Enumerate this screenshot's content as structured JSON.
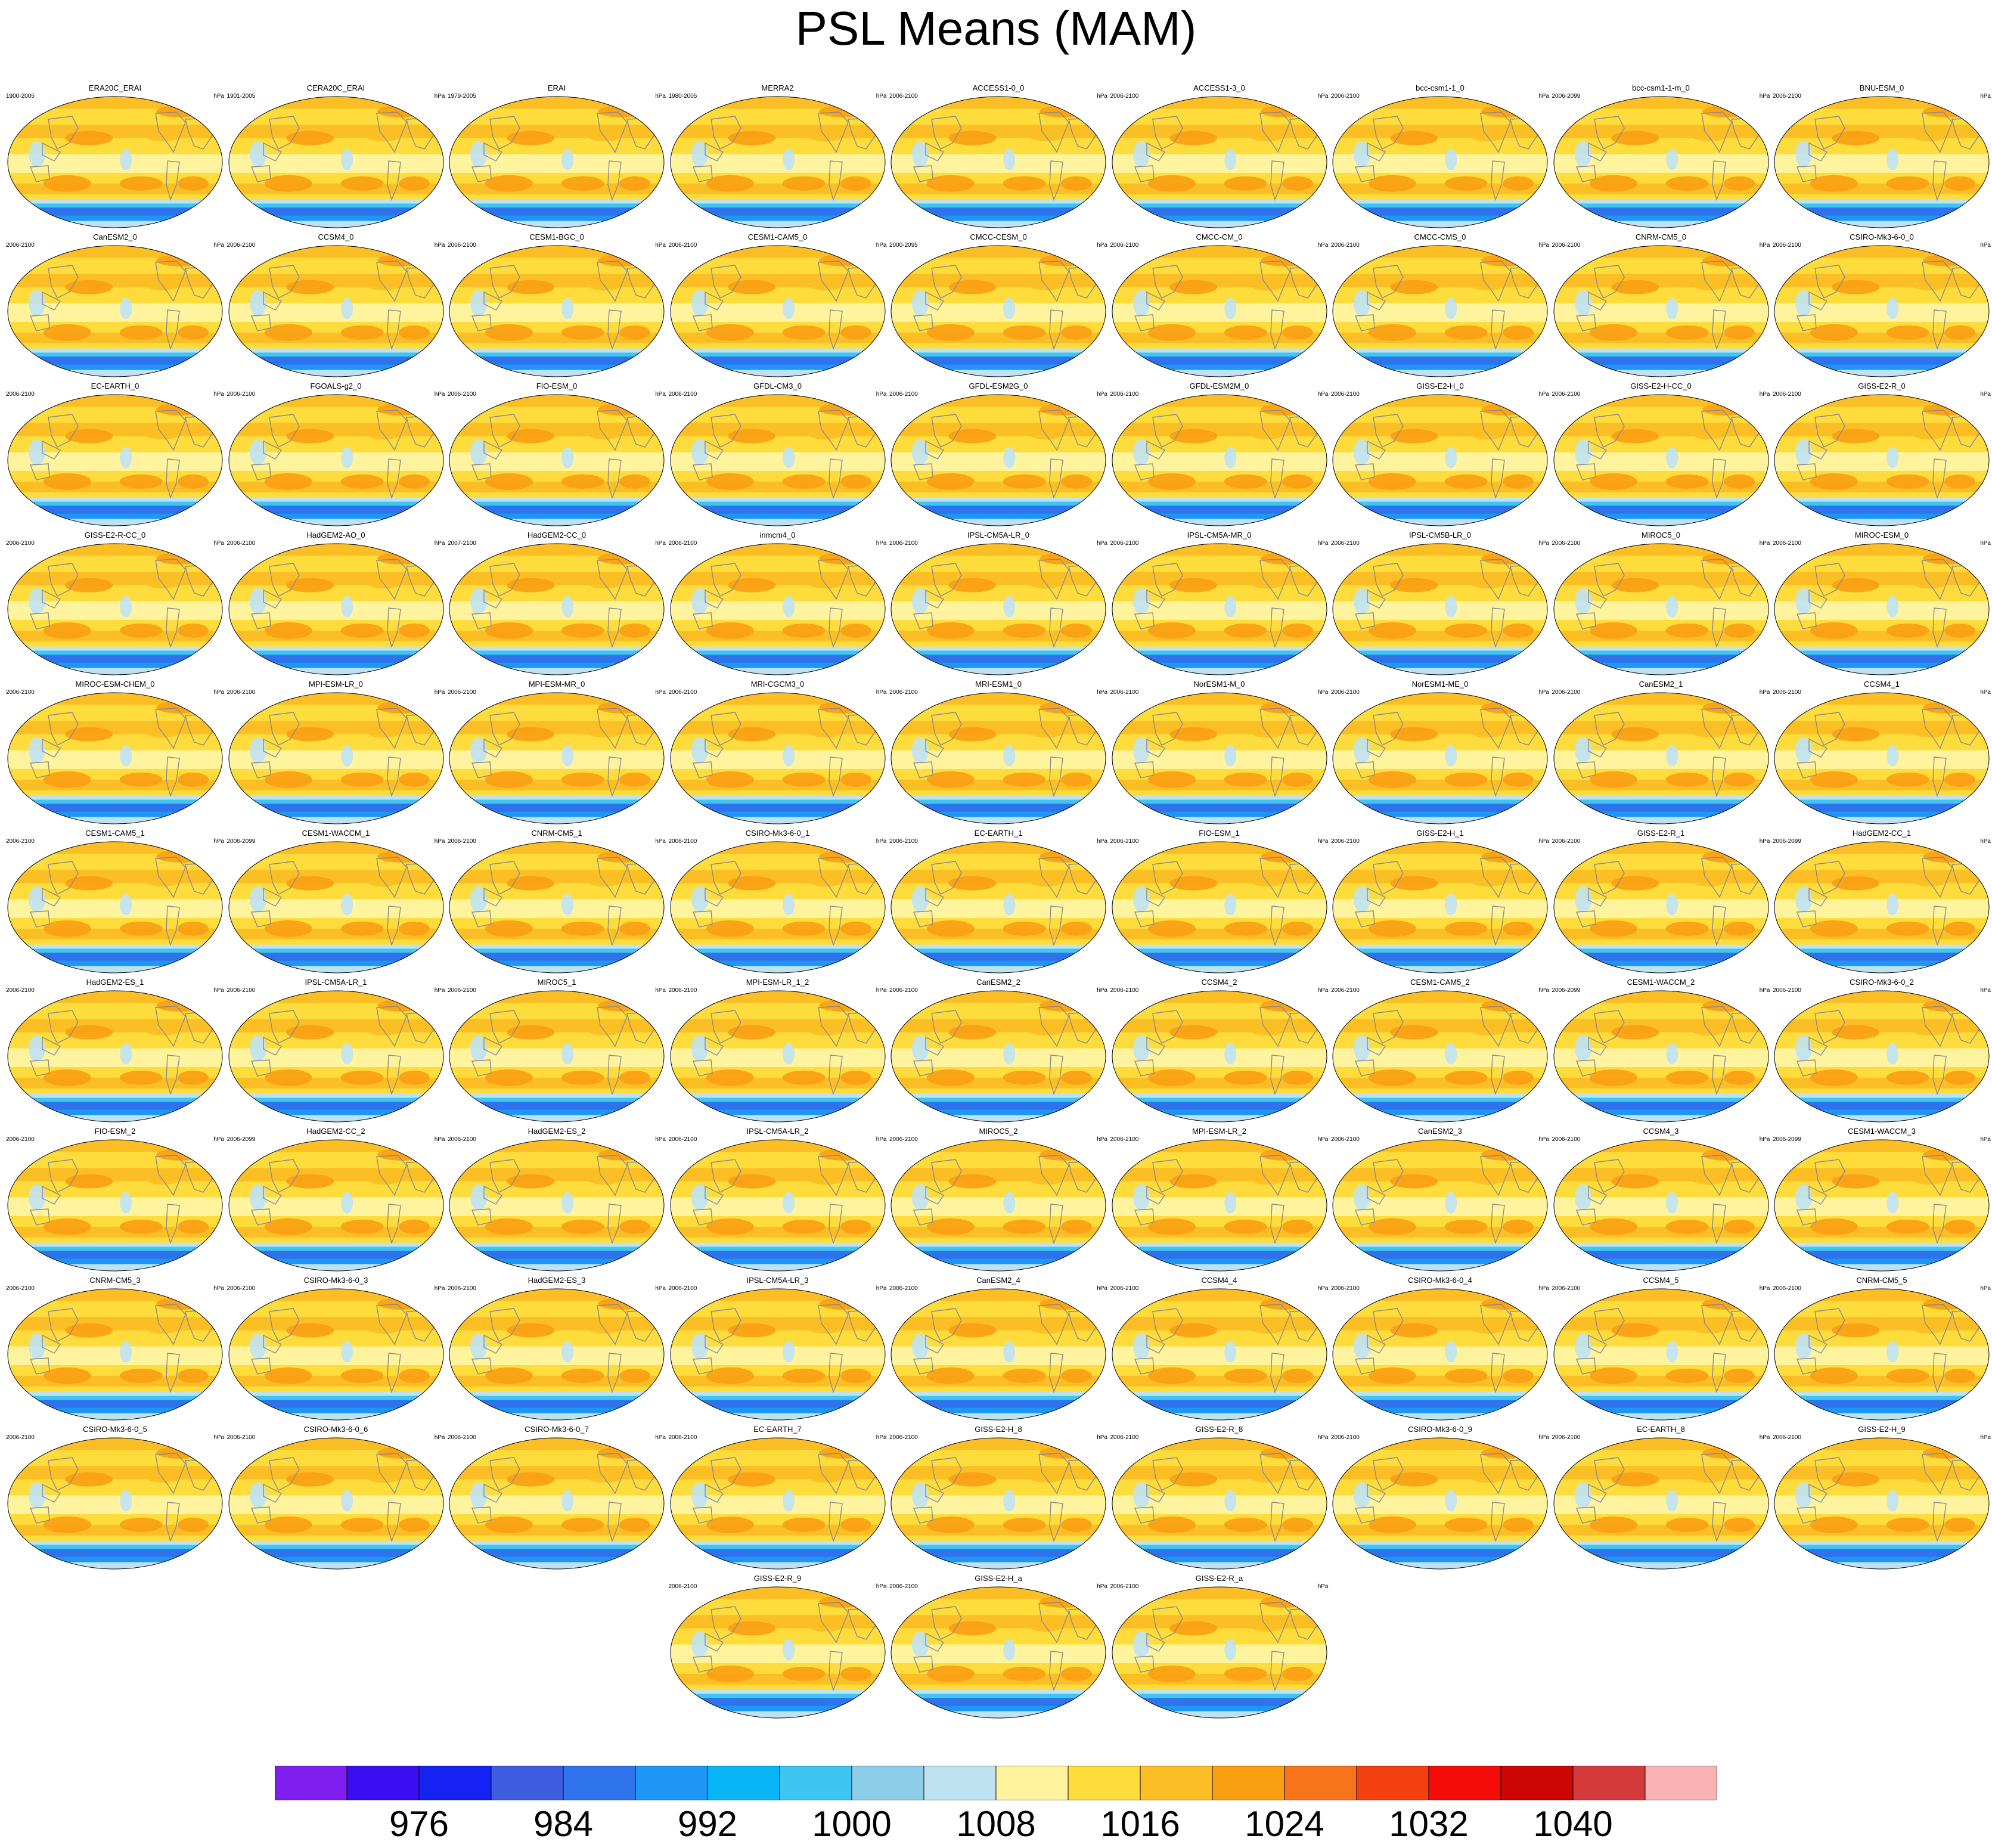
{
  "title": "PSL Means (MAM)",
  "units": "hPa",
  "panels": [
    {
      "name": "ERA20C_ERAI",
      "period": "1900-2005"
    },
    {
      "name": "CERA20C_ERAI",
      "period": "1901-2005"
    },
    {
      "name": "ERAI",
      "period": "1979-2005"
    },
    {
      "name": "MERRA2",
      "period": "1980-2005"
    },
    {
      "name": "ACCESS1-0_0",
      "period": "2006-2100"
    },
    {
      "name": "ACCESS1-3_0",
      "period": "2006-2100"
    },
    {
      "name": "bcc-csm1-1_0",
      "period": "2006-2100"
    },
    {
      "name": "bcc-csm1-1-m_0",
      "period": "2006-2099"
    },
    {
      "name": "BNU-ESM_0",
      "period": "2006-2100"
    },
    {
      "name": "CanESM2_0",
      "period": "2006-2100"
    },
    {
      "name": "CCSM4_0",
      "period": "2006-2100"
    },
    {
      "name": "CESM1-BGC_0",
      "period": "2006-2100"
    },
    {
      "name": "CESM1-CAM5_0",
      "period": "2006-2100"
    },
    {
      "name": "CMCC-CESM_0",
      "period": "2000-2095"
    },
    {
      "name": "CMCC-CM_0",
      "period": "2006-2100"
    },
    {
      "name": "CMCC-CMS_0",
      "period": "2006-2100"
    },
    {
      "name": "CNRM-CM5_0",
      "period": "2006-2100"
    },
    {
      "name": "CSIRO-Mk3-6-0_0",
      "period": "2006-2100"
    },
    {
      "name": "EC-EARTH_0",
      "period": "2006-2100"
    },
    {
      "name": "FGOALS-g2_0",
      "period": "2006-2100"
    },
    {
      "name": "FIO-ESM_0",
      "period": "2006-2100"
    },
    {
      "name": "GFDL-CM3_0",
      "period": "2006-2100"
    },
    {
      "name": "GFDL-ESM2G_0",
      "period": "2006-2100"
    },
    {
      "name": "GFDL-ESM2M_0",
      "period": "2006-2100"
    },
    {
      "name": "GISS-E2-H_0",
      "period": "2006-2100"
    },
    {
      "name": "GISS-E2-H-CC_0",
      "period": "2006-2100"
    },
    {
      "name": "GISS-E2-R_0",
      "period": "2006-2100"
    },
    {
      "name": "GISS-E2-R-CC_0",
      "period": "2006-2100"
    },
    {
      "name": "HadGEM2-AO_0",
      "period": "2006-2100"
    },
    {
      "name": "HadGEM2-CC_0",
      "period": "2007-2100"
    },
    {
      "name": "inmcm4_0",
      "period": "2006-2100"
    },
    {
      "name": "IPSL-CM5A-LR_0",
      "period": "2006-2100"
    },
    {
      "name": "IPSL-CM5A-MR_0",
      "period": "2006-2100"
    },
    {
      "name": "IPSL-CM5B-LR_0",
      "period": "2006-2100"
    },
    {
      "name": "MIROC5_0",
      "period": "2006-2100"
    },
    {
      "name": "MIROC-ESM_0",
      "period": "2006-2100"
    },
    {
      "name": "MIROC-ESM-CHEM_0",
      "period": "2006-2100"
    },
    {
      "name": "MPI-ESM-LR_0",
      "period": "2006-2100"
    },
    {
      "name": "MPI-ESM-MR_0",
      "period": "2006-2100"
    },
    {
      "name": "MRI-CGCM3_0",
      "period": "2006-2100"
    },
    {
      "name": "MRI-ESM1_0",
      "period": "2006-2100"
    },
    {
      "name": "NorESM1-M_0",
      "period": "2006-2100"
    },
    {
      "name": "NorESM1-ME_0",
      "period": "2006-2100"
    },
    {
      "name": "CanESM2_1",
      "period": "2006-2100"
    },
    {
      "name": "CCSM4_1",
      "period": "2006-2100"
    },
    {
      "name": "CESM1-CAM5_1",
      "period": "2006-2100"
    },
    {
      "name": "CESM1-WACCM_1",
      "period": "2006-2099"
    },
    {
      "name": "CNRM-CM5_1",
      "period": "2006-2100"
    },
    {
      "name": "CSIRO-Mk3-6-0_1",
      "period": "2006-2100"
    },
    {
      "name": "EC-EARTH_1",
      "period": "2006-2100"
    },
    {
      "name": "FIO-ESM_1",
      "period": "2006-2100"
    },
    {
      "name": "GISS-E2-H_1",
      "period": "2006-2100"
    },
    {
      "name": "GISS-E2-R_1",
      "period": "2006-2100"
    },
    {
      "name": "HadGEM2-CC_1",
      "period": "2006-2099"
    },
    {
      "name": "HadGEM2-ES_1",
      "period": "2006-2100"
    },
    {
      "name": "IPSL-CM5A-LR_1",
      "period": "2006-2100"
    },
    {
      "name": "MIROC5_1",
      "period": "2006-2100"
    },
    {
      "name": "MPI-ESM-LR_1_2",
      "period": "2006-2100"
    },
    {
      "name": "CanESM2_2",
      "period": "2006-2100"
    },
    {
      "name": "CCSM4_2",
      "period": "2006-2100"
    },
    {
      "name": "CESM1-CAM5_2",
      "period": "2006-2100"
    },
    {
      "name": "CESM1-WACCM_2",
      "period": "2006-2099"
    },
    {
      "name": "CSIRO-Mk3-6-0_2",
      "period": "2006-2100"
    },
    {
      "name": "FIO-ESM_2",
      "period": "2006-2100"
    },
    {
      "name": "HadGEM2-CC_2",
      "period": "2006-2099"
    },
    {
      "name": "HadGEM2-ES_2",
      "period": "2006-2100"
    },
    {
      "name": "IPSL-CM5A-LR_2",
      "period": "2006-2100"
    },
    {
      "name": "MIROC5_2",
      "period": "2006-2100"
    },
    {
      "name": "MPI-ESM-LR_2",
      "period": "2006-2100"
    },
    {
      "name": "CanESM2_3",
      "period": "2006-2100"
    },
    {
      "name": "CCSM4_3",
      "period": "2006-2100"
    },
    {
      "name": "CESM1-WACCM_3",
      "period": "2006-2099"
    },
    {
      "name": "CNRM-CM5_3",
      "period": "2006-2100"
    },
    {
      "name": "CSIRO-Mk3-6-0_3",
      "period": "2006-2100"
    },
    {
      "name": "HadGEM2-ES_3",
      "period": "2006-2100"
    },
    {
      "name": "IPSL-CM5A-LR_3",
      "period": "2006-2100"
    },
    {
      "name": "CanESM2_4",
      "period": "2006-2100"
    },
    {
      "name": "CCSM4_4",
      "period": "2006-2100"
    },
    {
      "name": "CSIRO-Mk3-6-0_4",
      "period": "2006-2100"
    },
    {
      "name": "CCSM4_5",
      "period": "2006-2100"
    },
    {
      "name": "CNRM-CM5_5",
      "period": "2006-2100"
    },
    {
      "name": "CSIRO-Mk3-6-0_5",
      "period": "2006-2100"
    },
    {
      "name": "CSIRO-Mk3-6-0_6",
      "period": "2006-2100"
    },
    {
      "name": "CSIRO-Mk3-6-0_7",
      "period": "2006-2100"
    },
    {
      "name": "EC-EARTH_7",
      "period": "2006-2100"
    },
    {
      "name": "GISS-E2-H_8",
      "period": "2006-2100"
    },
    {
      "name": "GISS-E2-R_8",
      "period": "2006-2100"
    },
    {
      "name": "CSIRO-Mk3-6-0_9",
      "period": "2006-2100"
    },
    {
      "name": "EC-EARTH_8",
      "period": "2006-2100"
    },
    {
      "name": "GISS-E2-H_9",
      "period": "2006-2100"
    },
    {
      "name": "GISS-E2-R_9",
      "period": "2006-2100"
    },
    {
      "name": "GISS-E2-H_a",
      "period": "2006-2100"
    },
    {
      "name": "GISS-E2-R_a",
      "period": "2006-2100"
    }
  ],
  "colorbar": {
    "colors": [
      "#7e1ff0",
      "#3a0ef2",
      "#1522f2",
      "#3d5ee0",
      "#2f73ec",
      "#1e96f5",
      "#0ab5f5",
      "#3ec6f2",
      "#8ecde8",
      "#bfe2f3",
      "#fff39e",
      "#fddc3c",
      "#fbbf25",
      "#fa9e12",
      "#f7741a",
      "#f5410f",
      "#f50b08",
      "#cc0505",
      "#d43a3a",
      "#f9b3b3"
    ],
    "labels": [
      "976",
      "984",
      "992",
      "1000",
      "1008",
      "1016",
      "1024",
      "1032",
      "1040"
    ]
  }
}
